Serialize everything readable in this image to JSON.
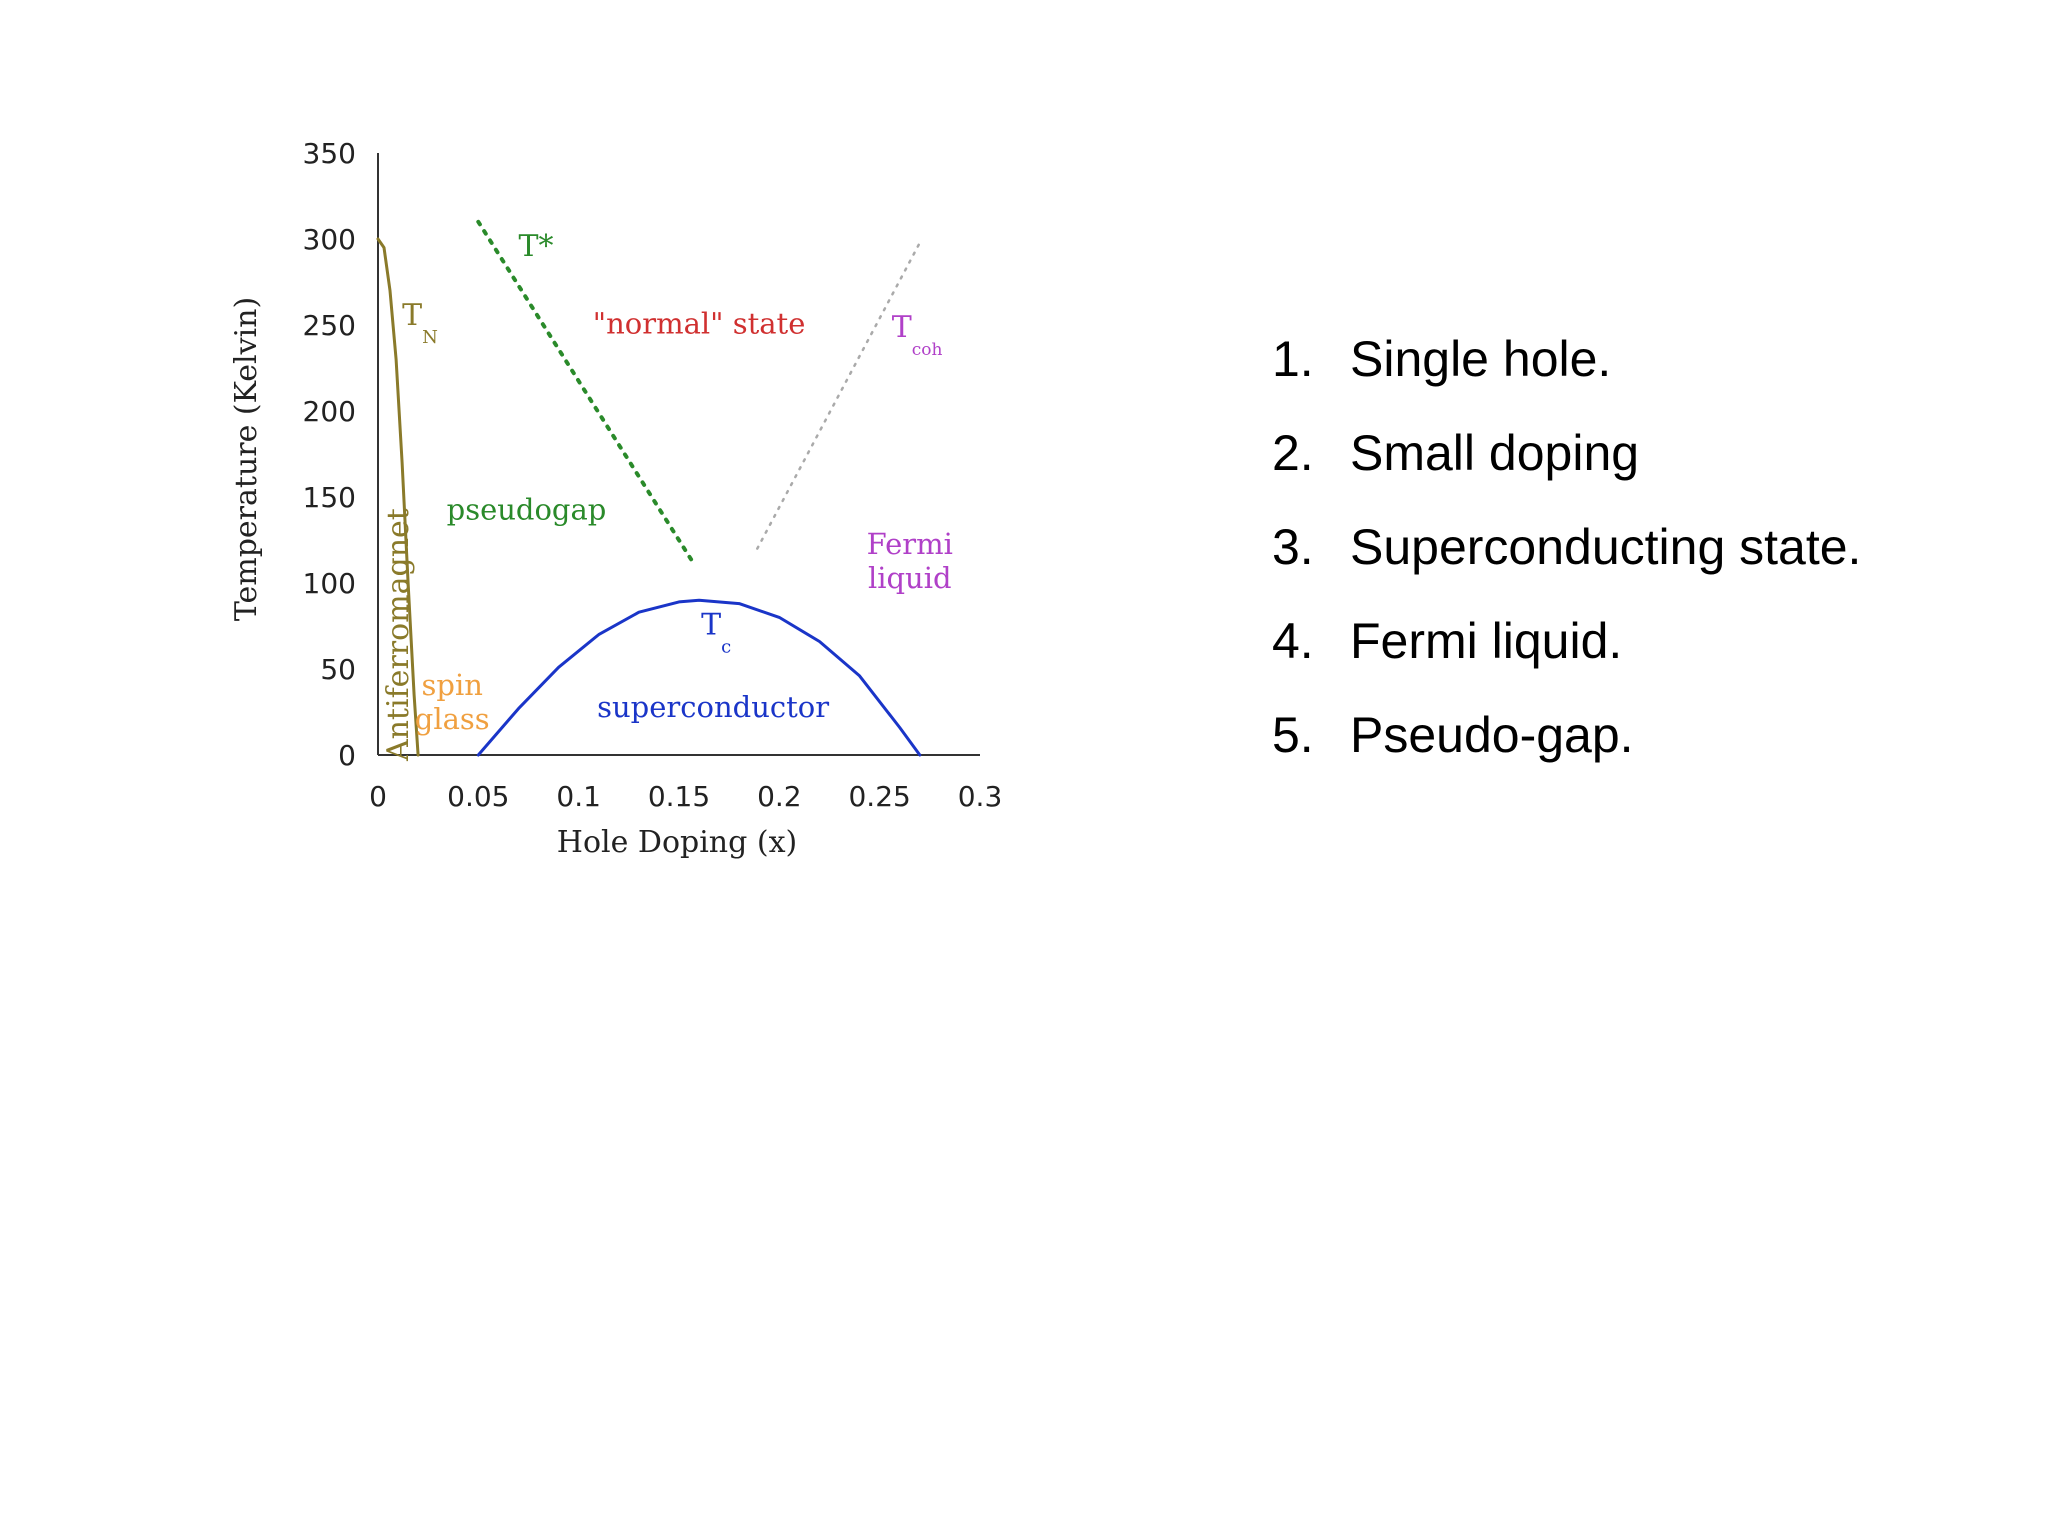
{
  "chart_data": {
    "type": "line",
    "title": "",
    "xlabel": "Hole Doping (x)",
    "ylabel": "Temperature (Kelvin)",
    "xlim": [
      0,
      0.3
    ],
    "ylim": [
      0,
      350
    ],
    "x_ticks": [
      "0",
      "0.05",
      "0.1",
      "0.15",
      "0.2",
      "0.25",
      "0.3"
    ],
    "y_ticks": [
      "0",
      "50",
      "100",
      "150",
      "200",
      "250",
      "300",
      "350"
    ],
    "grid": false,
    "legend": "none",
    "series": [
      {
        "name": "TN",
        "color": "#8a7a2a",
        "style": "solid",
        "x": [
          0,
          0.003,
          0.006,
          0.009,
          0.012,
          0.015,
          0.018,
          0.02
        ],
        "y": [
          300,
          295,
          270,
          230,
          170,
          100,
          35,
          0
        ]
      },
      {
        "name": "T*",
        "color": "#2a8a2a",
        "style": "dotted",
        "x": [
          0.05,
          0.157
        ],
        "y": [
          310,
          112
        ]
      },
      {
        "name": "Tc",
        "color": "#1a35c8",
        "style": "solid",
        "x": [
          0.05,
          0.07,
          0.09,
          0.11,
          0.13,
          0.15,
          0.16,
          0.18,
          0.2,
          0.22,
          0.24,
          0.26,
          0.27
        ],
        "y": [
          0,
          27,
          51,
          70,
          83,
          89,
          90,
          88,
          80,
          66,
          46,
          16,
          0
        ]
      },
      {
        "name": "Tcoh",
        "color": "#aaaaaa",
        "style": "dotted",
        "x": [
          0.189,
          0.271
        ],
        "y": [
          120,
          300
        ]
      }
    ],
    "annotations": [
      {
        "id": "tn",
        "main": "T",
        "sub": "N",
        "x": 0.012,
        "y": 250,
        "color": "#8a7a2a"
      },
      {
        "id": "tstar",
        "main": "T*",
        "sub": "",
        "x": 0.07,
        "y": 290,
        "color": "#2a8a2a"
      },
      {
        "id": "tc",
        "main": "T",
        "sub": "c",
        "x": 0.161,
        "y": 70,
        "color": "#1a35c8"
      },
      {
        "id": "tcoh",
        "main": "T",
        "sub": "coh",
        "x": 0.256,
        "y": 243,
        "color": "#b040c8"
      }
    ],
    "region_labels": [
      {
        "id": "normal-state",
        "lines": [
          "\"normal\" state"
        ],
        "x": 0.16,
        "y": 245,
        "color": "#d03030"
      },
      {
        "id": "pseudogap",
        "lines": [
          "pseudogap"
        ],
        "x": 0.074,
        "y": 137,
        "color": "#2a8a2a"
      },
      {
        "id": "fermi-liquid",
        "lines": [
          "Fermi",
          "liquid"
        ],
        "x": 0.265,
        "y": 117,
        "color": "#b040c8"
      },
      {
        "id": "superconductor",
        "lines": [
          "superconductor"
        ],
        "x": 0.167,
        "y": 22,
        "color": "#1a35c8"
      },
      {
        "id": "spin-glass",
        "lines": [
          "spin",
          "glass"
        ],
        "x": 0.037,
        "y": 35,
        "color": "#f0a040"
      },
      {
        "id": "antiferromagnet",
        "lines": [
          "Antiferromagnet"
        ],
        "x": 0.01,
        "y": 70,
        "color": "#8a7a2a",
        "rotate": -90
      }
    ]
  },
  "list": {
    "items": [
      {
        "num": "1.",
        "text": "Single hole."
      },
      {
        "num": "2.",
        "text": "Small doping"
      },
      {
        "num": "3.",
        "text": "Superconducting state."
      },
      {
        "num": "4.",
        "text": "Fermi liquid."
      },
      {
        "num": "5.",
        "text": "Pseudo-gap."
      }
    ]
  }
}
